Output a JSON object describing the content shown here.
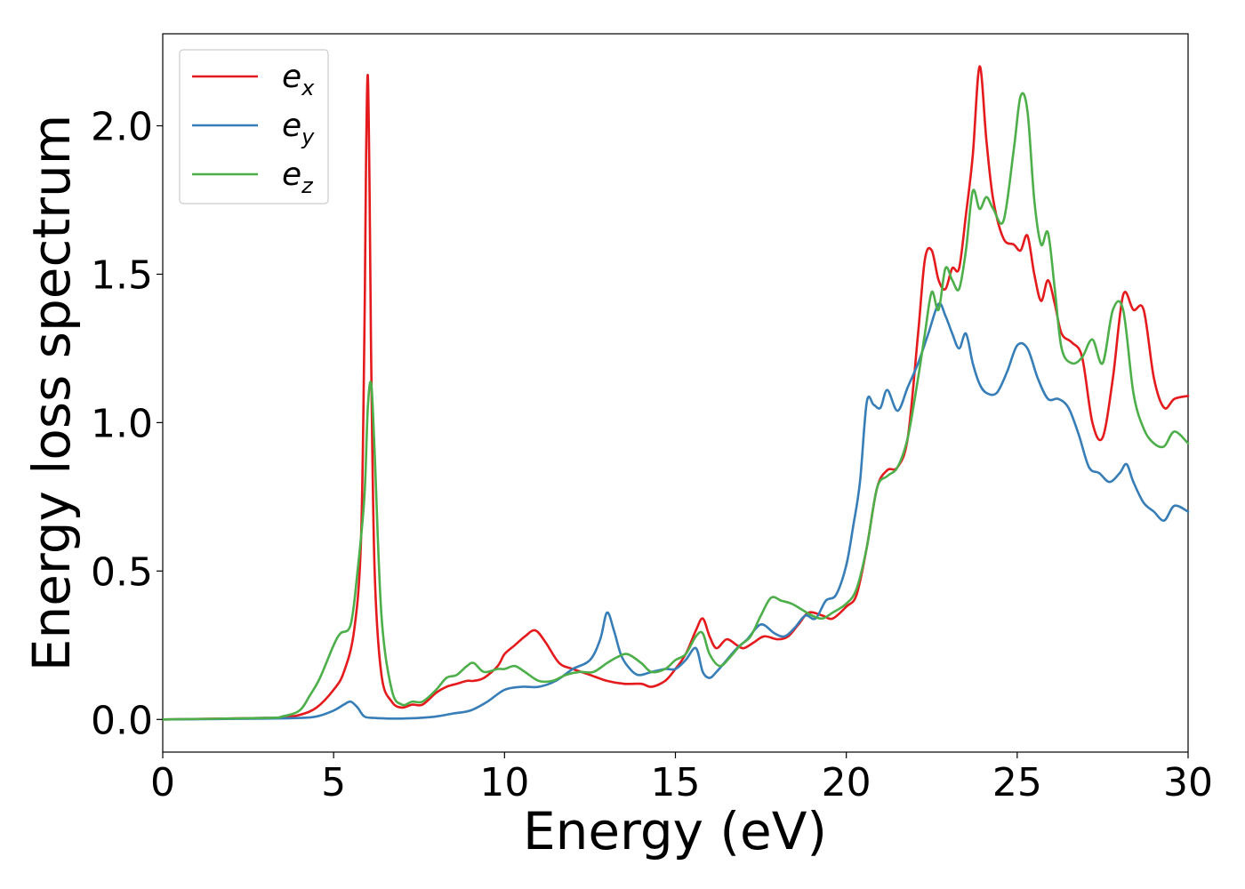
{
  "chart_data": {
    "type": "line",
    "title": "",
    "xlabel": "Energy (eV)",
    "ylabel": "Energy loss spectrum",
    "xlim": [
      0,
      30
    ],
    "ylim": [
      -0.11,
      2.31
    ],
    "xticks": [
      0,
      5,
      10,
      15,
      20,
      25,
      30
    ],
    "xtick_labels": [
      "0",
      "5",
      "10",
      "15",
      "20",
      "25",
      "30"
    ],
    "yticks": [
      0.0,
      0.5,
      1.0,
      1.5,
      2.0
    ],
    "ytick_labels": [
      "0.0",
      "0.5",
      "1.0",
      "1.5",
      "2.0"
    ],
    "grid": false,
    "legend_position": "top-left",
    "series": [
      {
        "name": "e_x",
        "label_base": "e",
        "label_sub": "x",
        "color": "#e41a1c",
        "x": [
          0,
          3,
          3.5,
          4,
          4.5,
          5,
          5.3,
          5.6,
          5.8,
          5.9,
          5.95,
          6.0,
          6.05,
          6.1,
          6.2,
          6.4,
          6.7,
          7,
          7.3,
          7.6,
          8,
          8.3,
          8.6,
          8.9,
          9.1,
          9.4,
          9.8,
          10,
          10.3,
          10.6,
          10.9,
          11.2,
          11.6,
          12,
          12.5,
          13,
          13.5,
          14,
          14.3,
          14.7,
          15,
          15.3,
          15.6,
          15.8,
          16,
          16.2,
          16.5,
          16.8,
          17,
          17.3,
          17.6,
          18,
          18.3,
          18.6,
          18.9,
          19.3,
          19.6,
          20,
          20.3,
          20.6,
          20.9,
          21.2,
          21.5,
          21.8,
          22.1,
          22.3,
          22.5,
          22.7,
          22.9,
          23.1,
          23.3,
          23.5,
          23.7,
          23.9,
          24.1,
          24.3,
          24.6,
          24.9,
          25.1,
          25.3,
          25.5,
          25.7,
          25.9,
          26.1,
          26.3,
          26.6,
          26.9,
          27.2,
          27.5,
          27.8,
          28.1,
          28.4,
          28.7,
          29,
          29.3,
          29.6,
          30
        ],
        "y": [
          0,
          0.005,
          0.007,
          0.015,
          0.04,
          0.1,
          0.16,
          0.3,
          0.6,
          1.3,
          1.9,
          2.17,
          1.8,
          1.2,
          0.5,
          0.15,
          0.06,
          0.04,
          0.05,
          0.05,
          0.09,
          0.11,
          0.12,
          0.13,
          0.13,
          0.14,
          0.18,
          0.22,
          0.25,
          0.28,
          0.3,
          0.26,
          0.19,
          0.17,
          0.15,
          0.13,
          0.12,
          0.12,
          0.11,
          0.13,
          0.17,
          0.22,
          0.3,
          0.34,
          0.28,
          0.24,
          0.27,
          0.25,
          0.24,
          0.26,
          0.28,
          0.27,
          0.28,
          0.32,
          0.36,
          0.35,
          0.34,
          0.38,
          0.42,
          0.58,
          0.78,
          0.84,
          0.85,
          0.95,
          1.3,
          1.55,
          1.58,
          1.48,
          1.45,
          1.52,
          1.52,
          1.7,
          1.9,
          2.2,
          1.95,
          1.75,
          1.62,
          1.6,
          1.58,
          1.63,
          1.5,
          1.41,
          1.48,
          1.4,
          1.3,
          1.27,
          1.22,
          1.0,
          0.95,
          1.15,
          1.43,
          1.38,
          1.38,
          1.15,
          1.05,
          1.08,
          1.09
        ]
      },
      {
        "name": "e_y",
        "label_base": "e",
        "label_sub": "y",
        "color": "#377eb8",
        "x": [
          0,
          3,
          4,
          4.5,
          5,
          5.3,
          5.5,
          5.7,
          5.9,
          6.2,
          6.6,
          7,
          7.5,
          8,
          8.5,
          9,
          9.5,
          10,
          10.5,
          11,
          11.5,
          12,
          12.5,
          12.8,
          13,
          13.2,
          13.4,
          13.6,
          13.9,
          14.3,
          14.7,
          15,
          15.3,
          15.6,
          15.8,
          16,
          16.2,
          16.5,
          16.8,
          17.1,
          17.5,
          17.9,
          18.2,
          18.5,
          18.8,
          19.1,
          19.4,
          19.7,
          20,
          20.2,
          20.4,
          20.6,
          20.8,
          21,
          21.2,
          21.5,
          21.8,
          22.1,
          22.4,
          22.7,
          22.9,
          23.1,
          23.3,
          23.5,
          23.7,
          23.9,
          24.1,
          24.4,
          24.7,
          25,
          25.3,
          25.6,
          25.9,
          26.2,
          26.5,
          26.8,
          27.1,
          27.4,
          27.7,
          28,
          28.2,
          28.4,
          28.7,
          29,
          29.3,
          29.6,
          30
        ],
        "y": [
          0,
          0.003,
          0.005,
          0.01,
          0.03,
          0.05,
          0.06,
          0.04,
          0.01,
          0.005,
          0.003,
          0.003,
          0.005,
          0.01,
          0.02,
          0.03,
          0.06,
          0.1,
          0.11,
          0.11,
          0.13,
          0.17,
          0.2,
          0.27,
          0.36,
          0.3,
          0.22,
          0.18,
          0.15,
          0.16,
          0.17,
          0.17,
          0.2,
          0.24,
          0.16,
          0.14,
          0.16,
          0.2,
          0.24,
          0.27,
          0.32,
          0.29,
          0.28,
          0.31,
          0.35,
          0.34,
          0.4,
          0.42,
          0.52,
          0.65,
          0.8,
          1.07,
          1.06,
          1.05,
          1.11,
          1.04,
          1.12,
          1.2,
          1.3,
          1.4,
          1.36,
          1.3,
          1.25,
          1.3,
          1.2,
          1.13,
          1.1,
          1.1,
          1.17,
          1.26,
          1.25,
          1.15,
          1.08,
          1.08,
          1.05,
          0.96,
          0.85,
          0.83,
          0.8,
          0.83,
          0.86,
          0.8,
          0.73,
          0.7,
          0.67,
          0.72,
          0.7
        ]
      },
      {
        "name": "e_z",
        "label_base": "e",
        "label_sub": "z",
        "color": "#4daf4a",
        "x": [
          0,
          3,
          3.5,
          4,
          4.3,
          4.6,
          5,
          5.2,
          5.5,
          5.7,
          5.9,
          6.0,
          6.1,
          6.2,
          6.4,
          6.7,
          7,
          7.3,
          7.6,
          8,
          8.3,
          8.6,
          8.9,
          9.1,
          9.4,
          9.8,
          10,
          10.3,
          10.6,
          11,
          11.4,
          11.8,
          12.2,
          12.6,
          13,
          13.3,
          13.6,
          14,
          14.3,
          14.7,
          15,
          15.3,
          15.6,
          15.8,
          16,
          16.3,
          16.6,
          16.9,
          17.2,
          17.5,
          17.8,
          18.1,
          18.4,
          18.7,
          19,
          19.3,
          19.6,
          20,
          20.3,
          20.6,
          20.9,
          21.2,
          21.5,
          21.8,
          22.1,
          22.3,
          22.5,
          22.7,
          22.9,
          23.1,
          23.3,
          23.5,
          23.7,
          23.9,
          24.1,
          24.3,
          24.6,
          24.9,
          25.1,
          25.3,
          25.5,
          25.7,
          25.9,
          26.1,
          26.3,
          26.6,
          26.9,
          27.2,
          27.5,
          27.8,
          28.1,
          28.4,
          28.7,
          29,
          29.3,
          29.6,
          30
        ],
        "y": [
          0,
          0.005,
          0.01,
          0.03,
          0.08,
          0.14,
          0.25,
          0.29,
          0.32,
          0.5,
          0.75,
          1.05,
          1.13,
          0.9,
          0.35,
          0.1,
          0.05,
          0.06,
          0.06,
          0.1,
          0.14,
          0.15,
          0.18,
          0.19,
          0.16,
          0.17,
          0.17,
          0.18,
          0.16,
          0.13,
          0.13,
          0.15,
          0.16,
          0.16,
          0.19,
          0.21,
          0.22,
          0.19,
          0.16,
          0.17,
          0.2,
          0.22,
          0.28,
          0.29,
          0.22,
          0.18,
          0.21,
          0.25,
          0.28,
          0.35,
          0.41,
          0.4,
          0.39,
          0.37,
          0.35,
          0.34,
          0.36,
          0.39,
          0.44,
          0.58,
          0.78,
          0.82,
          0.85,
          0.95,
          1.15,
          1.3,
          1.44,
          1.38,
          1.52,
          1.48,
          1.45,
          1.58,
          1.78,
          1.72,
          1.76,
          1.72,
          1.68,
          1.92,
          2.1,
          2.05,
          1.75,
          1.6,
          1.64,
          1.45,
          1.25,
          1.2,
          1.22,
          1.28,
          1.2,
          1.38,
          1.38,
          1.1,
          0.98,
          0.93,
          0.92,
          0.97,
          0.93
        ]
      }
    ]
  }
}
